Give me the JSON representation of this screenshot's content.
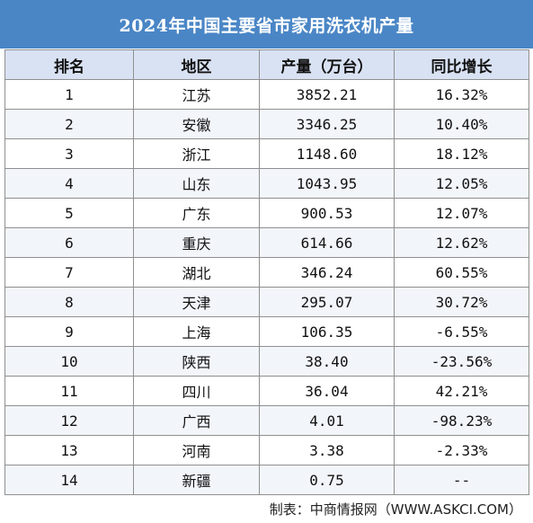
{
  "title": "2024年中国主要省市家用洗衣机产量",
  "headers": {
    "rank": "排名",
    "region": "地区",
    "output": "产量（万台）",
    "growth": "同比增长"
  },
  "rows": [
    {
      "rank": "1",
      "region": "江苏",
      "output": "3852.21",
      "growth": "16.32%"
    },
    {
      "rank": "2",
      "region": "安徽",
      "output": "3346.25",
      "growth": "10.40%"
    },
    {
      "rank": "3",
      "region": "浙江",
      "output": "1148.60",
      "growth": "18.12%"
    },
    {
      "rank": "4",
      "region": "山东",
      "output": "1043.95",
      "growth": "12.05%"
    },
    {
      "rank": "5",
      "region": "广东",
      "output": "900.53",
      "growth": "12.07%"
    },
    {
      "rank": "6",
      "region": "重庆",
      "output": "614.66",
      "growth": "12.62%"
    },
    {
      "rank": "7",
      "region": "湖北",
      "output": "346.24",
      "growth": "60.55%"
    },
    {
      "rank": "8",
      "region": "天津",
      "output": "295.07",
      "growth": "30.72%"
    },
    {
      "rank": "9",
      "region": "上海",
      "output": "106.35",
      "growth": "-6.55%"
    },
    {
      "rank": "10",
      "region": "陕西",
      "output": "38.40",
      "growth": "-23.56%"
    },
    {
      "rank": "11",
      "region": "四川",
      "output": "36.04",
      "growth": "42.21%"
    },
    {
      "rank": "12",
      "region": "广西",
      "output": "4.01",
      "growth": "-98.23%"
    },
    {
      "rank": "13",
      "region": "河南",
      "output": "3.38",
      "growth": "-2.33%"
    },
    {
      "rank": "14",
      "region": "新疆",
      "output": "0.75",
      "growth": "--"
    }
  ],
  "footer": "制表：中商情报网（WWW.ASKCI.COM）",
  "colors": {
    "title_bg": "#4a86c6",
    "header_bg": "#d9e2f3",
    "alt_row_bg": "#f2f5fa"
  }
}
